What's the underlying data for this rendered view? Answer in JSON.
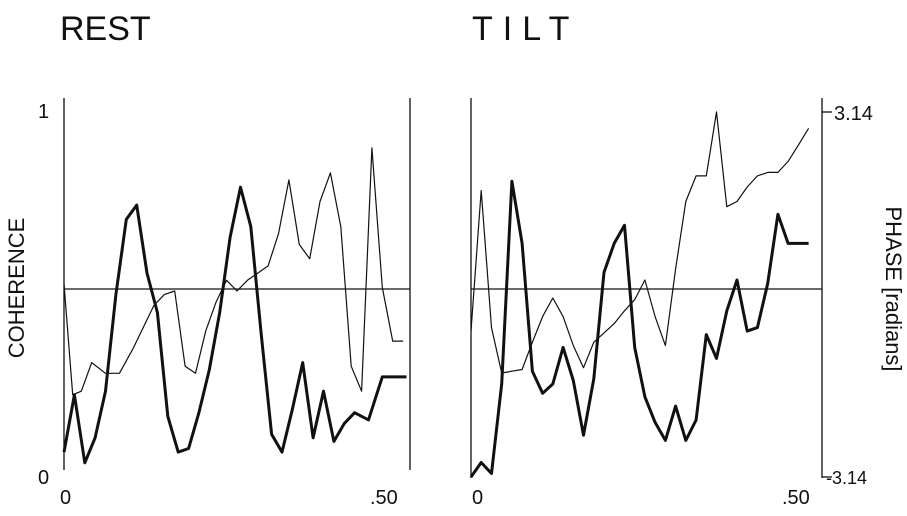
{
  "chart_data": [
    {
      "type": "line",
      "title": "REST",
      "ylabel": "COHERENCE",
      "xlim": [
        0,
        0.5
      ],
      "ylim": [
        0,
        1
      ],
      "y_ticks": [
        "0",
        "1"
      ],
      "x_ticks": [
        "0",
        ".50"
      ],
      "grid": false,
      "series": [
        {
          "style": "thin",
          "x": [
            0,
            0.0125,
            0.025,
            0.04,
            0.06,
            0.08,
            0.1,
            0.115,
            0.13,
            0.145,
            0.16,
            0.175,
            0.19,
            0.205,
            0.22,
            0.235,
            0.25,
            0.265,
            0.28,
            0.295,
            0.31,
            0.325,
            0.34,
            0.355,
            0.37,
            0.385,
            0.4,
            0.415,
            0.43,
            0.445,
            0.46,
            0.475,
            0.49
          ],
          "y": [
            0.52,
            0.21,
            0.22,
            0.3,
            0.27,
            0.27,
            0.34,
            0.4,
            0.46,
            0.49,
            0.5,
            0.29,
            0.27,
            0.39,
            0.47,
            0.53,
            0.5,
            0.53,
            0.55,
            0.57,
            0.66,
            0.81,
            0.63,
            0.59,
            0.75,
            0.83,
            0.68,
            0.29,
            0.22,
            0.9,
            0.51,
            0.36,
            0.36
          ]
        },
        {
          "style": "thick",
          "x": [
            0,
            0.015,
            0.03,
            0.045,
            0.06,
            0.075,
            0.09,
            0.105,
            0.12,
            0.135,
            0.15,
            0.165,
            0.18,
            0.195,
            0.21,
            0.225,
            0.24,
            0.255,
            0.27,
            0.285,
            0.3,
            0.315,
            0.33,
            0.345,
            0.36,
            0.375,
            0.39,
            0.405,
            0.42,
            0.44,
            0.46,
            0.48,
            0.495
          ],
          "y": [
            0.05,
            0.21,
            0.02,
            0.09,
            0.22,
            0.49,
            0.7,
            0.74,
            0.55,
            0.44,
            0.15,
            0.05,
            0.06,
            0.16,
            0.28,
            0.44,
            0.65,
            0.79,
            0.68,
            0.38,
            0.1,
            0.05,
            0.17,
            0.3,
            0.09,
            0.22,
            0.08,
            0.13,
            0.16,
            0.14,
            0.26,
            0.26,
            0.26
          ]
        }
      ]
    },
    {
      "type": "line",
      "title": "TILT",
      "ylabel": "PHASE [radians]",
      "xlim": [
        0,
        0.5
      ],
      "ylim": [
        -3.14,
        3.14
      ],
      "y_ticks": [
        "-3.14",
        "3.14"
      ],
      "x_ticks": [
        "0",
        ".50"
      ],
      "grid": false,
      "series": [
        {
          "style": "thin",
          "x": [
            0,
            0.015,
            0.03,
            0.045,
            0.06,
            0.075,
            0.09,
            0.105,
            0.12,
            0.135,
            0.15,
            0.165,
            0.18,
            0.195,
            0.21,
            0.225,
            0.24,
            0.255,
            0.27,
            0.285,
            0.3,
            0.315,
            0.33,
            0.345,
            0.36,
            0.375,
            0.39,
            0.405,
            0.42,
            0.435,
            0.45,
            0.465,
            0.48,
            0.495
          ],
          "y": [
            -0.63,
            1.79,
            -0.57,
            -1.35,
            -1.32,
            -1.29,
            -0.82,
            -0.38,
            -0.06,
            -0.38,
            -0.88,
            -1.26,
            -0.82,
            -0.66,
            -0.5,
            -0.28,
            -0.09,
            0.25,
            -0.38,
            -0.88,
            0.44,
            1.6,
            2.04,
            2.04,
            3.14,
            1.51,
            1.6,
            1.85,
            2.04,
            2.1,
            2.1,
            2.29,
            2.57,
            2.86
          ]
        },
        {
          "style": "thick",
          "x": [
            0,
            0.015,
            0.03,
            0.045,
            0.06,
            0.075,
            0.09,
            0.105,
            0.12,
            0.135,
            0.15,
            0.165,
            0.18,
            0.195,
            0.21,
            0.225,
            0.24,
            0.255,
            0.27,
            0.285,
            0.3,
            0.315,
            0.33,
            0.345,
            0.36,
            0.375,
            0.39,
            0.405,
            0.42,
            0.435,
            0.45,
            0.465,
            0.48,
            0.495
          ],
          "y": [
            -3.14,
            -2.89,
            -3.08,
            -1.54,
            1.95,
            0.88,
            -1.32,
            -1.7,
            -1.54,
            -0.91,
            -1.48,
            -2.42,
            -1.45,
            0.38,
            0.88,
            1.19,
            -0.91,
            -1.76,
            -2.2,
            -2.51,
            -1.92,
            -2.51,
            -2.16,
            -0.69,
            -1.1,
            -0.28,
            0.25,
            -0.63,
            -0.57,
            0.19,
            1.38,
            0.88,
            0.88,
            0.88
          ]
        }
      ]
    }
  ]
}
